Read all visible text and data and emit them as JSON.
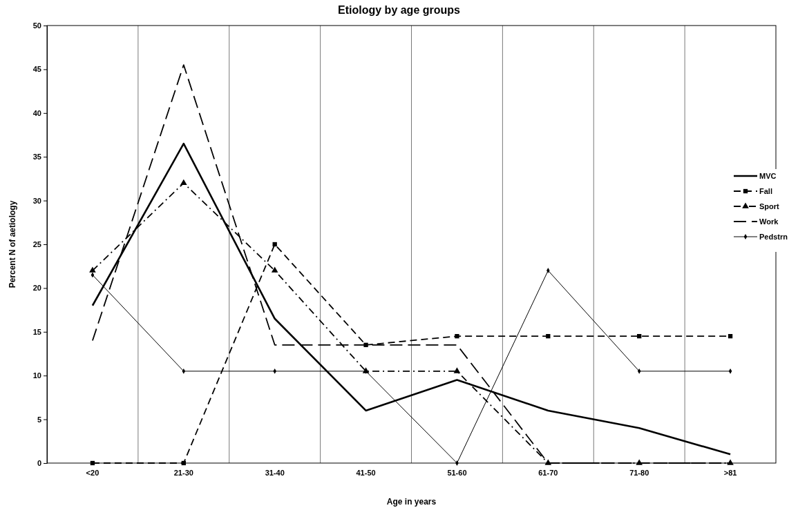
{
  "chart_data": {
    "type": "line",
    "title": "Etiology by age groups",
    "xlabel": "Age in years",
    "ylabel": "Percent N of aetiology",
    "categories": [
      "<20",
      "21-30",
      "31-40",
      "41-50",
      "51-60",
      "61-70",
      "71-80",
      ">81"
    ],
    "series": [
      {
        "name": "MVC",
        "color": "#000000",
        "line_style": "solid",
        "marker": "none",
        "values": [
          18,
          36.5,
          16.5,
          6,
          9.5,
          6,
          4,
          1
        ]
      },
      {
        "name": "Fall",
        "color": "#000000",
        "line_style": "dashed",
        "marker": "square",
        "values": [
          0,
          0,
          25,
          13.5,
          14.5,
          14.5,
          14.5,
          14.5
        ]
      },
      {
        "name": "Sport",
        "color": "#000000",
        "line_style": "dashdot",
        "marker": "triangle",
        "values": [
          22,
          32,
          22,
          10.5,
          10.5,
          0,
          0,
          0
        ]
      },
      {
        "name": "Work",
        "color": "#000000",
        "line_style": "longdash",
        "marker": "none",
        "values": [
          14,
          45.5,
          13.5,
          13.5,
          13.5,
          0,
          0,
          0
        ]
      },
      {
        "name": "Pedstrn",
        "color": "#000000",
        "line_style": "solid",
        "marker": "diamond",
        "values": [
          21.5,
          10.5,
          10.5,
          10.5,
          0,
          22,
          10.5,
          10.5
        ]
      }
    ],
    "ylim": [
      0,
      50
    ],
    "yticks": [
      0,
      5,
      10,
      15,
      20,
      25,
      30,
      35,
      40,
      45,
      50
    ],
    "grid": "x",
    "legend": "right"
  }
}
